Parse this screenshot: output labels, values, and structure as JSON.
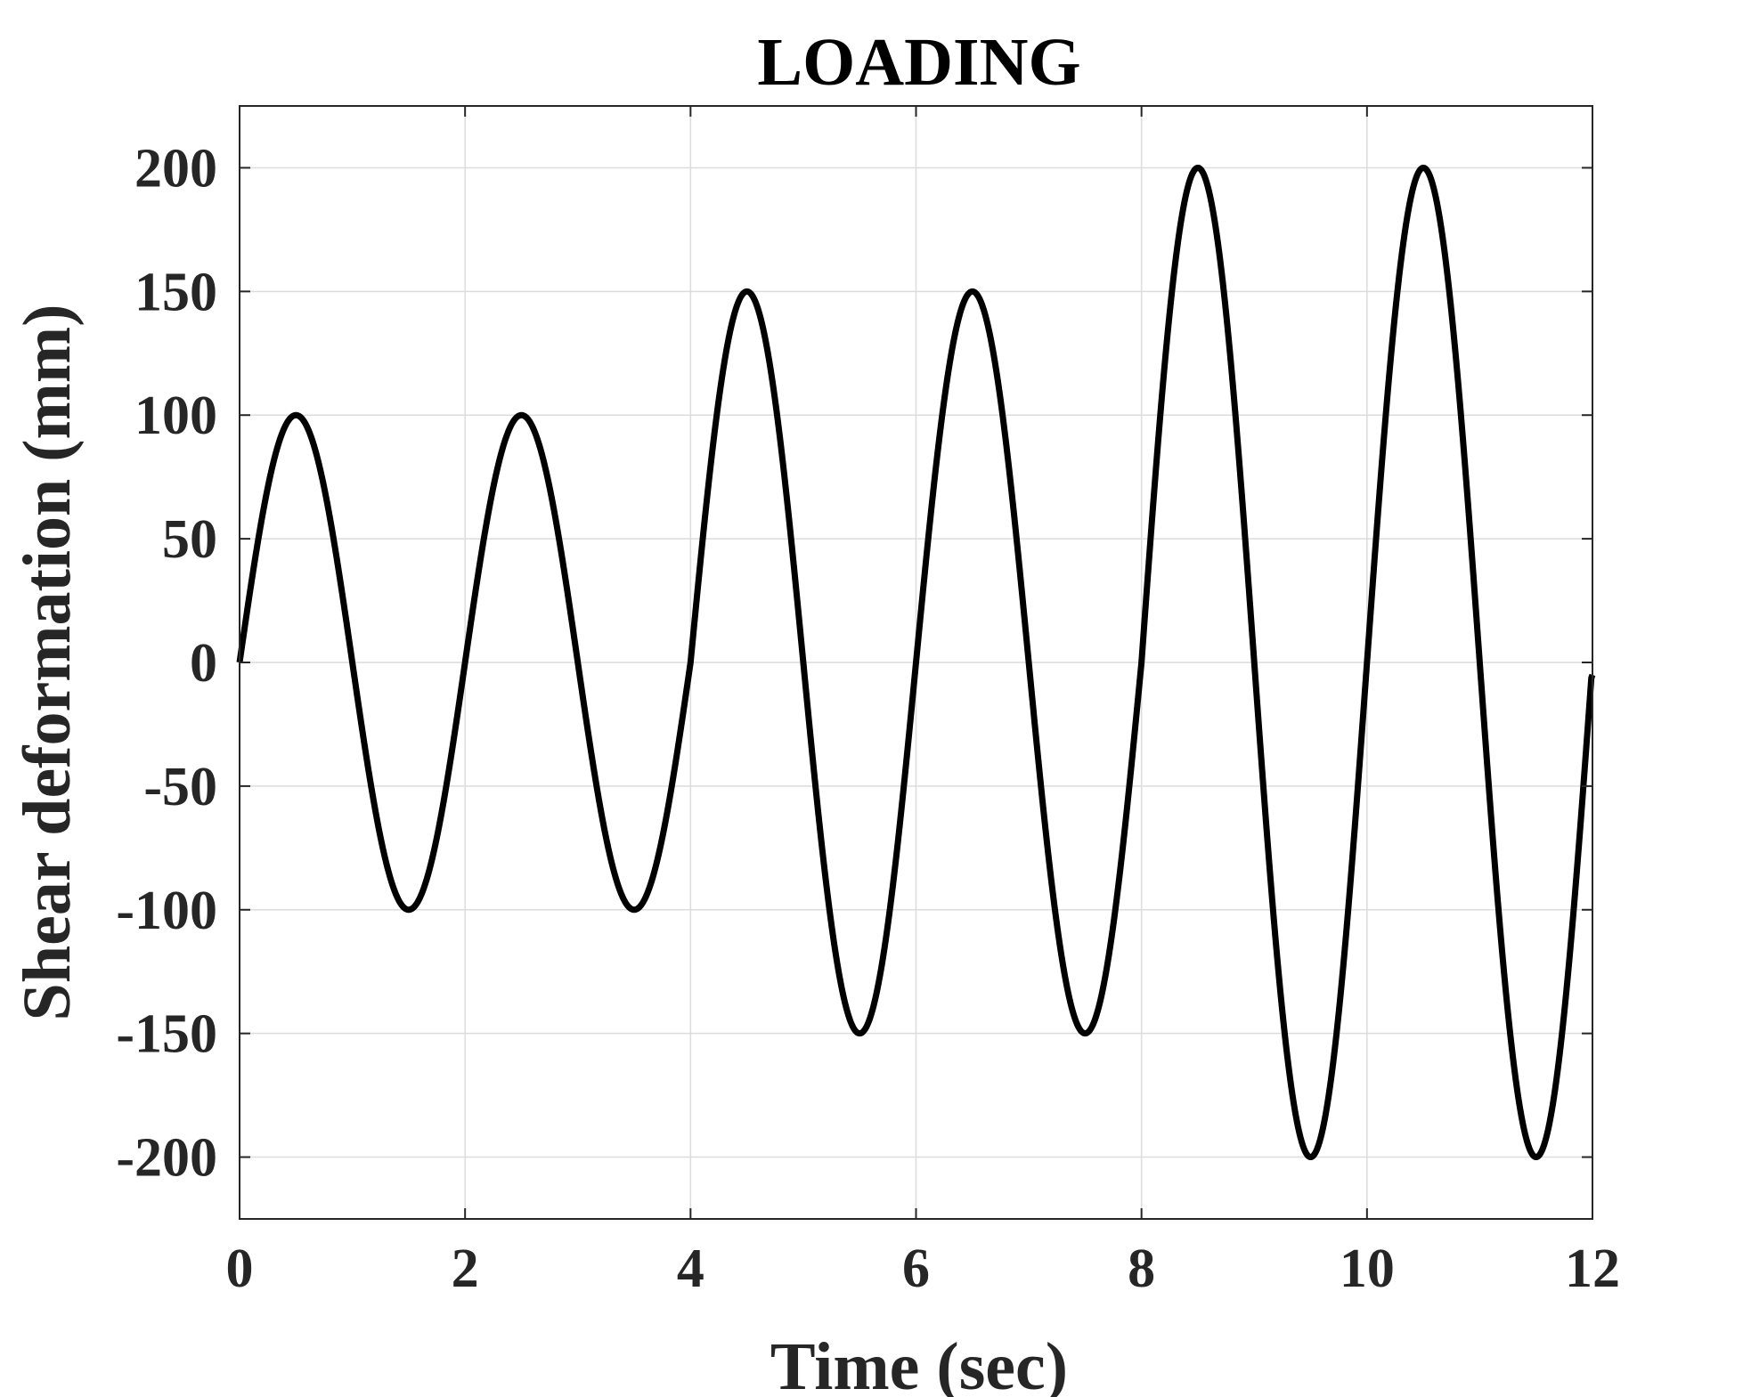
{
  "chart_data": {
    "type": "line",
    "title": "LOADING",
    "xlabel": "Time (sec)",
    "ylabel": "Shear deformation (mm)",
    "xlim": [
      0,
      12
    ],
    "ylim": [
      -225,
      225
    ],
    "xticks": [
      0,
      2,
      4,
      6,
      8,
      10,
      12
    ],
    "yticks": [
      -200,
      -150,
      -100,
      -50,
      0,
      50,
      100,
      150,
      200
    ],
    "xtick_labels": [
      "0",
      "2",
      "4",
      "6",
      "8",
      "10",
      "12"
    ],
    "ytick_labels": [
      "-200",
      "-150",
      "-100",
      "-50",
      "0",
      "50",
      "100",
      "150",
      "200"
    ],
    "grid": true,
    "series": [
      {
        "color": "#000000",
        "function": "sine",
        "period": 2,
        "segments": [
          {
            "x_start": 0,
            "x_end": 4,
            "amplitude": 100
          },
          {
            "x_start": 4,
            "x_end": 8,
            "amplitude": 150
          },
          {
            "x_start": 8,
            "x_end": 12,
            "amplitude": 200
          }
        ],
        "end_value": -5
      }
    ]
  }
}
